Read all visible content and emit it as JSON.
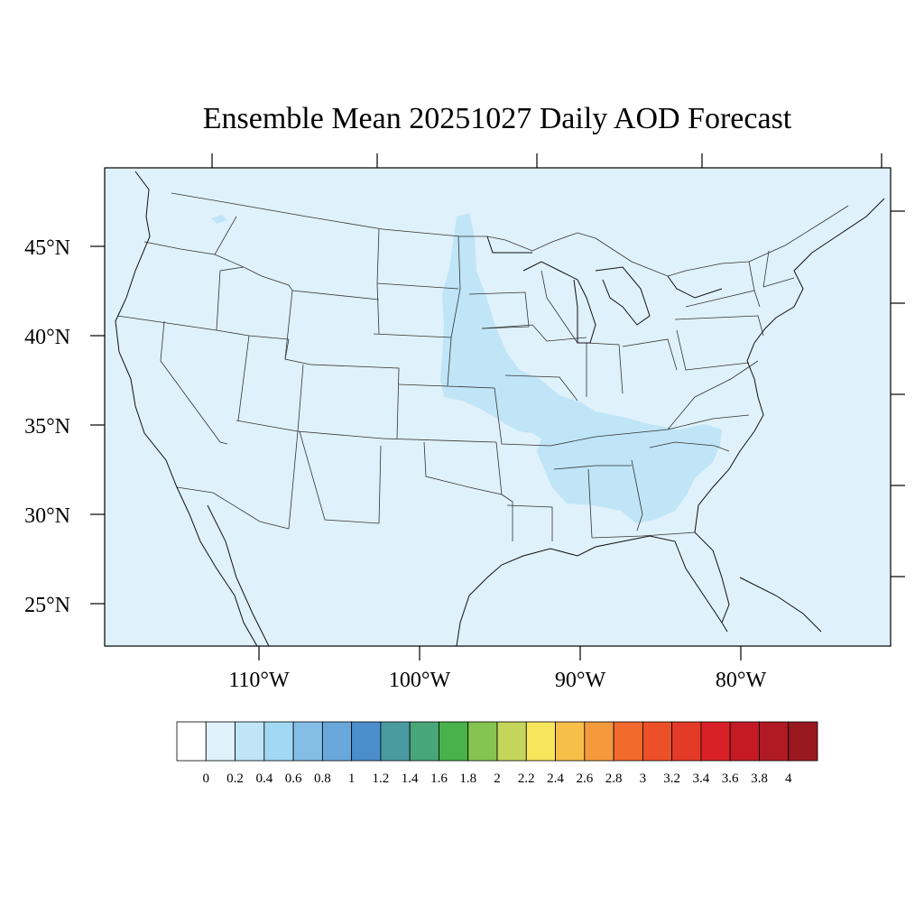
{
  "map": {
    "title": "Ensemble Mean 20251027 Daily AOD Forecast",
    "lat_labels": [
      "45°N",
      "40°N",
      "35°N",
      "30°N",
      "25°N"
    ],
    "lon_labels": [
      "110°W",
      "100°W",
      "90°W",
      "80°W"
    ],
    "background_color": "#dff1fa",
    "plume_color": "#bfe5f7",
    "boundary_color": "#333333"
  },
  "colorbar": {
    "labels": [
      "0",
      "0.2",
      "0.4",
      "0.6",
      "0.8",
      "1",
      "1.2",
      "1.4",
      "1.6",
      "1.8",
      "2",
      "2.2",
      "2.4",
      "2.6",
      "2.8",
      "3",
      "3.2",
      "3.4",
      "3.6",
      "3.8",
      "4"
    ],
    "colors": [
      "#ffffff",
      "#dff1fa",
      "#bfe5f7",
      "#a1d8f3",
      "#84bee6",
      "#6aa8dc",
      "#4a8ecb",
      "#4a9aa2",
      "#48a678",
      "#49b24a",
      "#85c450",
      "#c4d65a",
      "#f6e65c",
      "#f7be4a",
      "#f59a3c",
      "#f26a2d",
      "#ec5029",
      "#e43a28",
      "#d82028",
      "#c31a24",
      "#b01a22",
      "#9a1820"
    ]
  }
}
